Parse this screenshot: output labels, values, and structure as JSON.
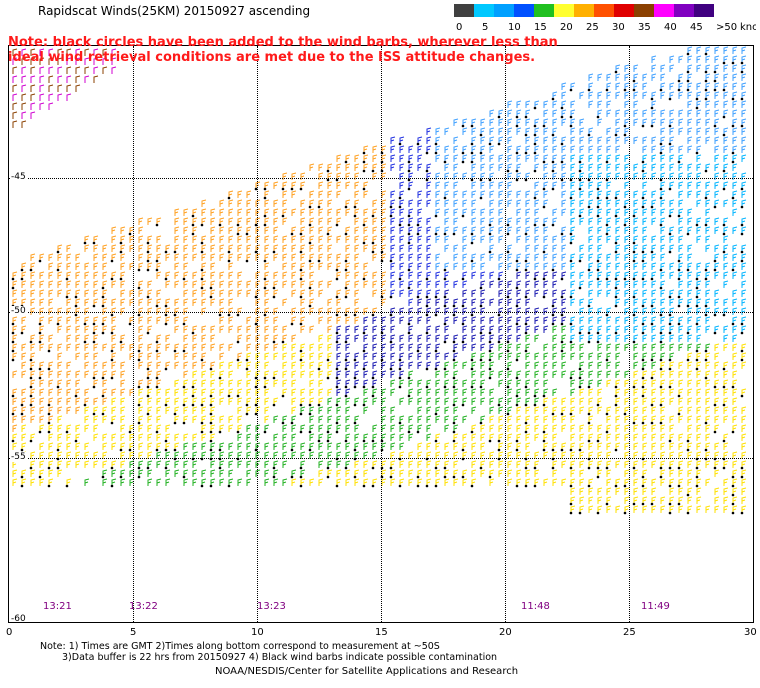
{
  "title": "Rapidscat Winds(25KM) 20150927 ascending",
  "note": "Note: black circles have been added to the wind barbs, wherever less than ideal wind retrieval conditions are met due to the ISS attitude changes.",
  "colorbar": {
    "labels": [
      "0",
      "5",
      "10",
      "15",
      "20",
      "25",
      "30",
      "35",
      "40",
      "45",
      ">50"
    ],
    "units": "knots",
    "colors": [
      "#404040",
      "#00c8ff",
      "#00a0ff",
      "#0050ff",
      "#20c020",
      "#ffff30",
      "#ffb000",
      "#ff5000",
      "#e00000",
      "#8b4000",
      "#ff00ff",
      "#8000c0",
      "#400080"
    ]
  },
  "map": {
    "lat_labels": [
      "-45",
      "-50",
      "-55",
      "-60"
    ],
    "lon_ticks": [
      "0",
      "5",
      "10",
      "15",
      "20",
      "25",
      "30"
    ],
    "time_labels": [
      "13:21",
      "13:22",
      "13:23",
      "11:48",
      "11:49"
    ]
  },
  "footnotes": {
    "line1": "Note: 1) Times are GMT 2)Times along bottom correspond to measurement at ~50S",
    "line2": "3)Data buffer is 22 hrs from 20150927 4) Black wind barbs indicate possible contamination",
    "credit": "NOAA/NESDIS/Center for Satellite Applications and Research"
  }
}
